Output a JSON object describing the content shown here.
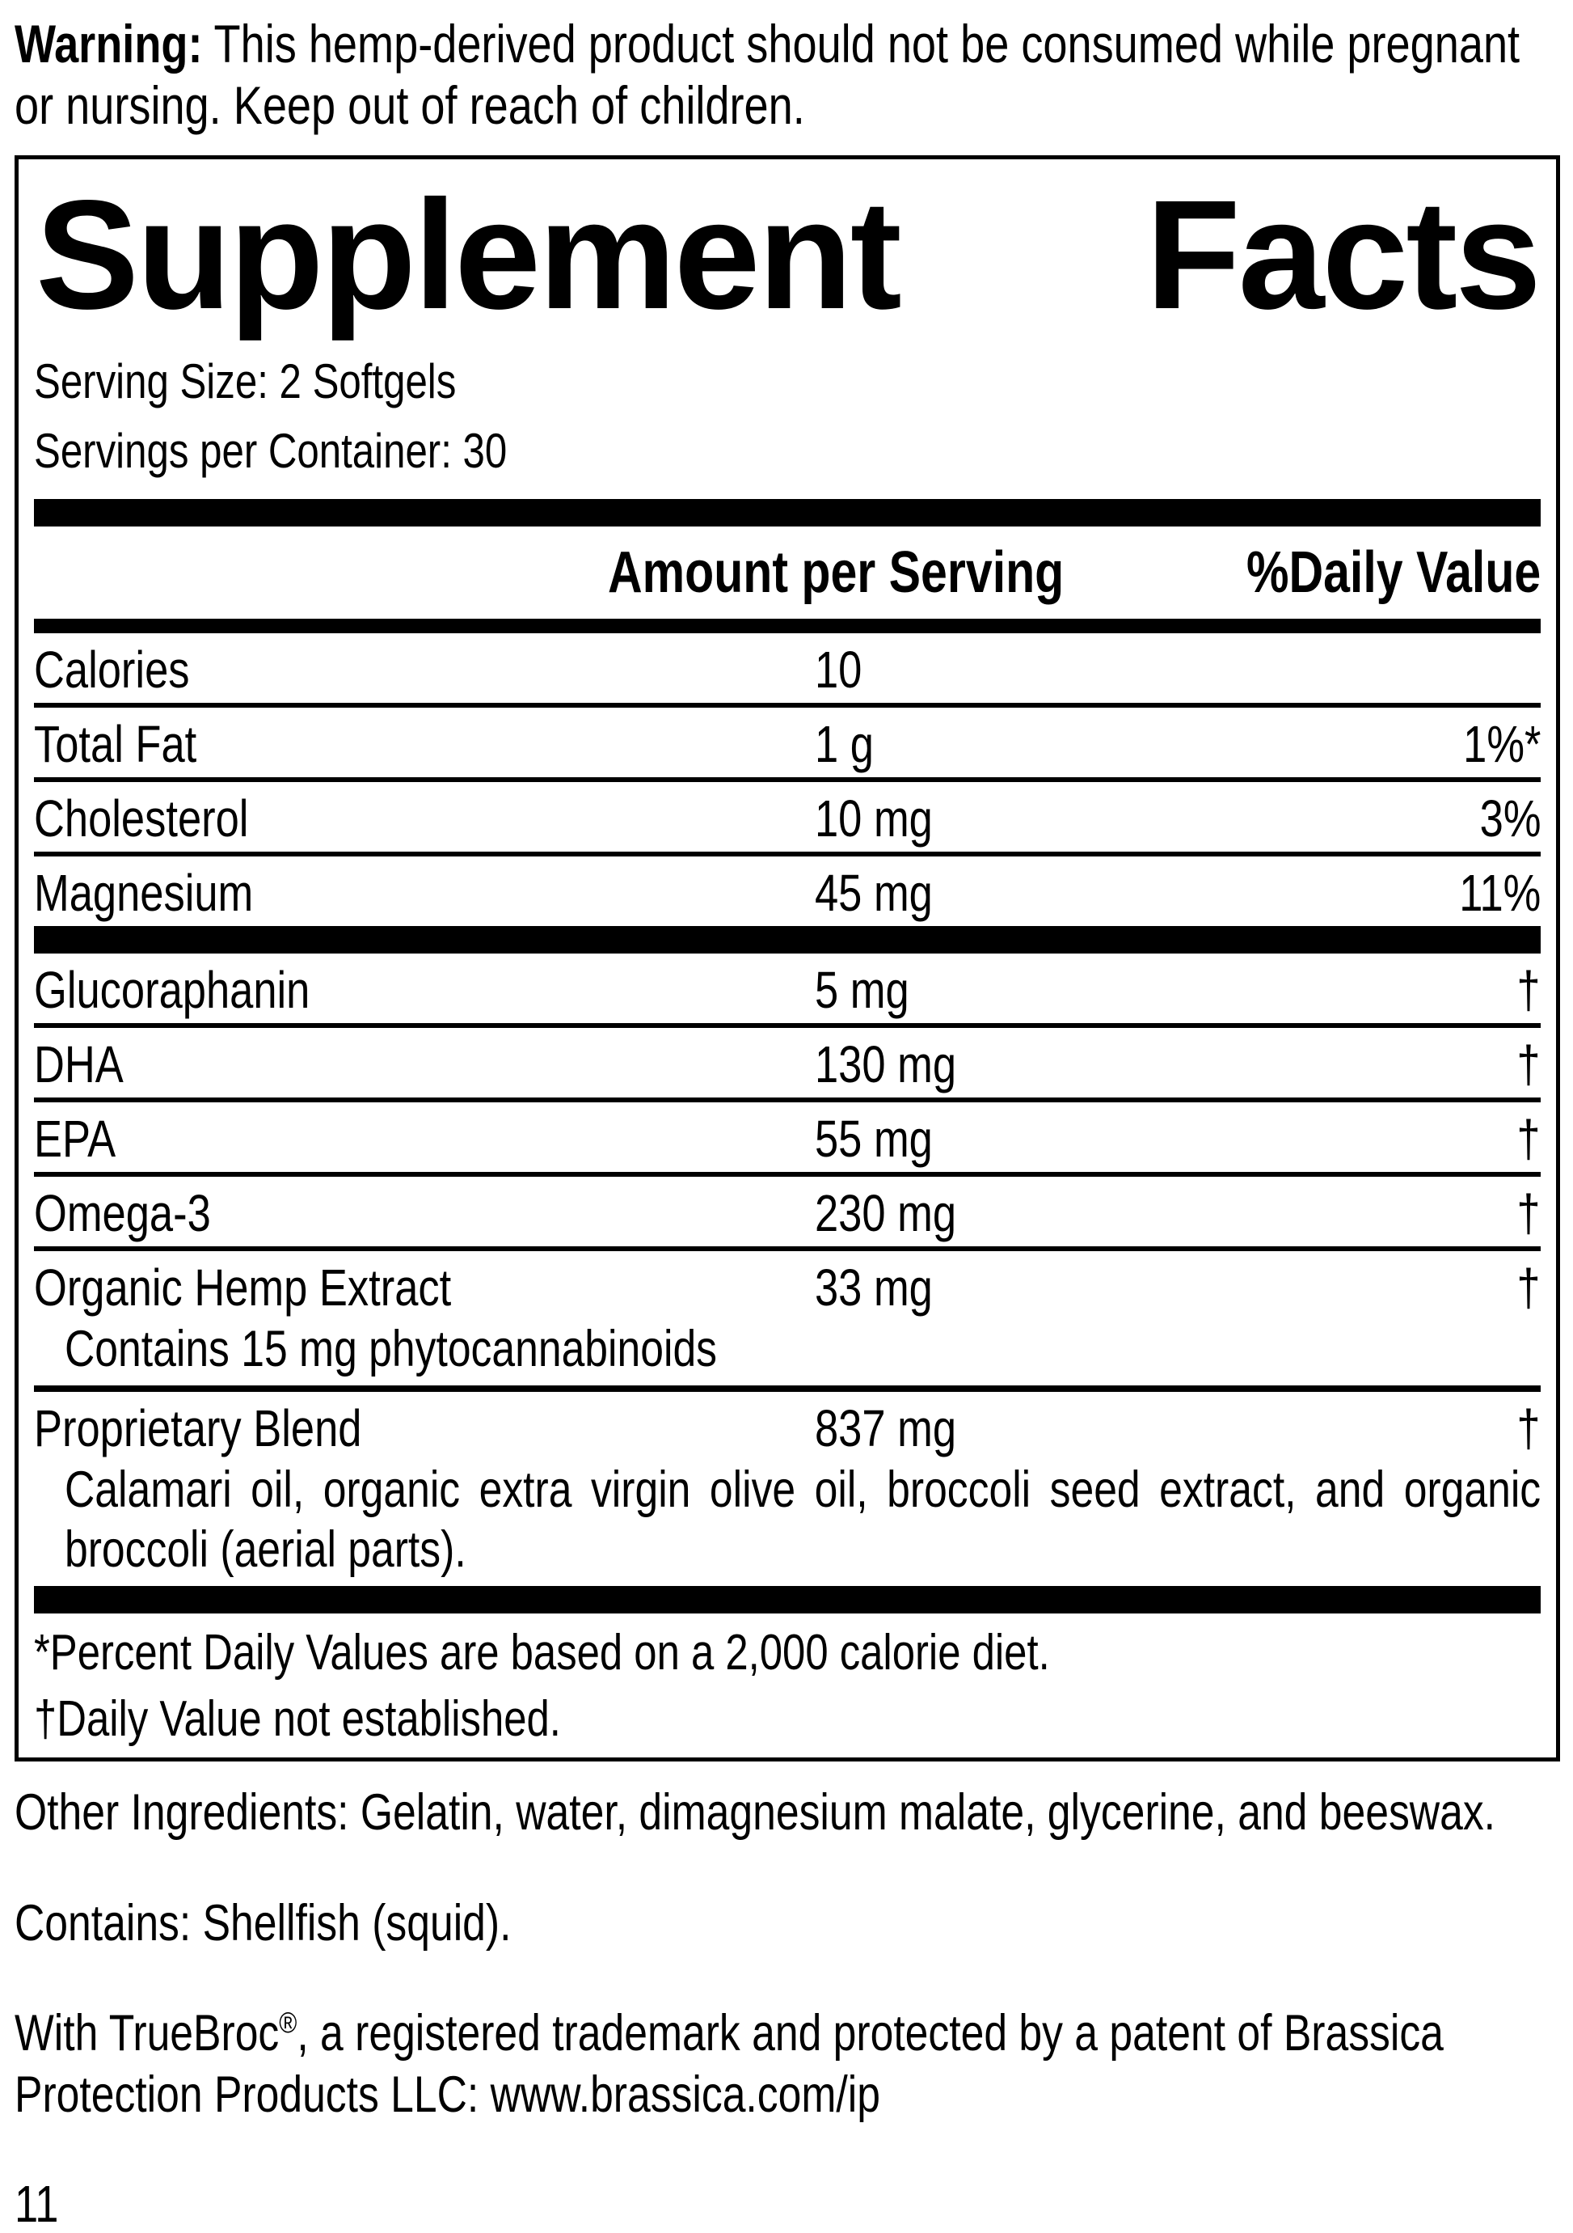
{
  "colors": {
    "text": "#000000",
    "background": "#ffffff"
  },
  "warning": {
    "label": "Warning:",
    "text": "This hemp-derived product should not be consumed while pregnant or nursing. Keep out of reach of children."
  },
  "panel": {
    "title": {
      "word1": "Supplement",
      "word2": "Facts"
    },
    "serving_size": "Serving Size: 2 Softgels",
    "servings_per_container": "Servings per Container: 30",
    "header": {
      "amount": "Amount per Serving",
      "daily_value": "%Daily Value"
    },
    "rows": [
      {
        "name": "Calories",
        "amount": "10",
        "dv": "",
        "sep": "thin"
      },
      {
        "name": "Total Fat",
        "amount": "1 g",
        "dv": "1%*",
        "sep": "thin"
      },
      {
        "name": "Cholesterol",
        "amount": "10 mg",
        "dv": "3%",
        "sep": "thin"
      },
      {
        "name": "Magnesium",
        "amount": "45 mg",
        "dv": "11%",
        "sep": "bar"
      },
      {
        "name": "Glucoraphanin",
        "amount": "5 mg",
        "dv": "†",
        "sep": "thin"
      },
      {
        "name": "DHA",
        "amount": "130 mg",
        "dv": "†",
        "sep": "thin"
      },
      {
        "name": "EPA",
        "amount": "55 mg",
        "dv": "†",
        "sep": "thin"
      },
      {
        "name": "Omega-3",
        "amount": "230 mg",
        "dv": "†",
        "sep": "thin"
      },
      {
        "name": "Organic Hemp Extract",
        "amount": "33 mg",
        "dv": "†",
        "sep": "medium",
        "sub": "Contains 15 mg phytocannabinoids",
        "sub_justify": false
      },
      {
        "name": "Proprietary Blend",
        "amount": "837 mg",
        "dv": "†",
        "sep": "none",
        "sub": "Calamari oil, organic extra virgin olive oil, broccoli seed extract, and organic broccoli (aerial parts).",
        "sub_justify": true
      }
    ],
    "footnotes": [
      "*Percent Daily Values are based on a 2,000 calorie diet.",
      "†Daily Value not established."
    ]
  },
  "other_ingredients": "Other Ingredients: Gelatin, water, dimagnesium malate, glycerine, and beeswax.",
  "contains": "Contains: Shellfish (squid).",
  "trademark": {
    "prefix": "With TrueBroc",
    "reg_mark": "®",
    "suffix": ", a registered trademark and protected by a patent of Brassica Protection Products LLC: www.brassica.com/ip"
  },
  "page_number": "11"
}
